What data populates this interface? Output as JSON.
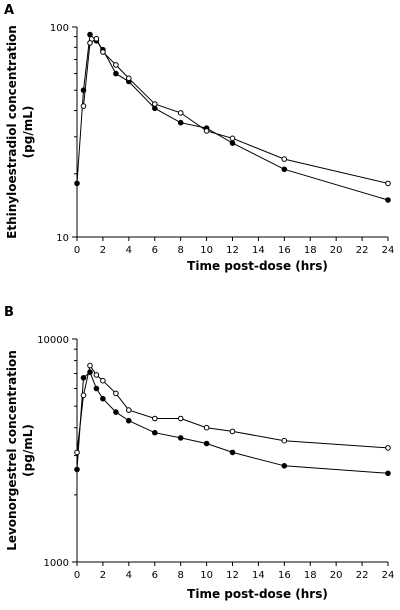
{
  "chart_data": [
    {
      "type": "line",
      "panel_label": "A",
      "title": "",
      "xlabel": "Time post-dose (hrs)",
      "ylabel_line1": "Ethinyloestradiol concentration",
      "ylabel_line2": "(pg/mL)",
      "yscale": "log",
      "ylim": [
        10,
        100
      ],
      "xlim": [
        0,
        24
      ],
      "x_ticks": [
        0,
        2,
        4,
        6,
        8,
        10,
        12,
        14,
        16,
        18,
        20,
        22,
        24
      ],
      "y_ticks": [
        10,
        100
      ],
      "series": [
        {
          "marker": "filled-circle",
          "x": [
            0,
            0.5,
            1,
            1.5,
            2,
            3,
            4,
            6,
            8,
            10,
            12,
            16,
            24
          ],
          "y": [
            18,
            50,
            92,
            86,
            78,
            60,
            55,
            41,
            35,
            33,
            28,
            21,
            15
          ]
        },
        {
          "marker": "open-circle",
          "x": [
            0.5,
            1,
            1.5,
            2,
            3,
            4,
            6,
            8,
            10,
            12,
            16,
            24
          ],
          "y": [
            42,
            84,
            88,
            76,
            66,
            57,
            43,
            39,
            32,
            29.5,
            23.5,
            18
          ]
        }
      ]
    },
    {
      "type": "line",
      "panel_label": "B",
      "title": "",
      "xlabel": "Time post-dose (hrs)",
      "ylabel_line1": "Levonorgestrel concentration",
      "ylabel_line2": "(pg/mL)",
      "yscale": "log",
      "ylim": [
        1000,
        10000
      ],
      "xlim": [
        0,
        24
      ],
      "x_ticks": [
        0,
        2,
        4,
        6,
        8,
        10,
        12,
        14,
        16,
        18,
        20,
        22,
        24
      ],
      "y_ticks": [
        1000,
        10000
      ],
      "series": [
        {
          "marker": "filled-circle",
          "x": [
            0,
            0.5,
            1,
            1.5,
            2,
            3,
            4,
            6,
            8,
            10,
            12,
            16,
            24
          ],
          "y": [
            2600,
            6700,
            7100,
            6000,
            5400,
            4700,
            4300,
            3800,
            3600,
            3400,
            3100,
            2700,
            2500
          ]
        },
        {
          "marker": "open-circle",
          "x": [
            0,
            0.5,
            1,
            1.5,
            2,
            3,
            4,
            6,
            8,
            10,
            12,
            16,
            24
          ],
          "y": [
            3100,
            5600,
            7600,
            6900,
            6500,
            5700,
            4800,
            4400,
            4400,
            4000,
            3850,
            3500,
            3250
          ]
        }
      ]
    }
  ]
}
